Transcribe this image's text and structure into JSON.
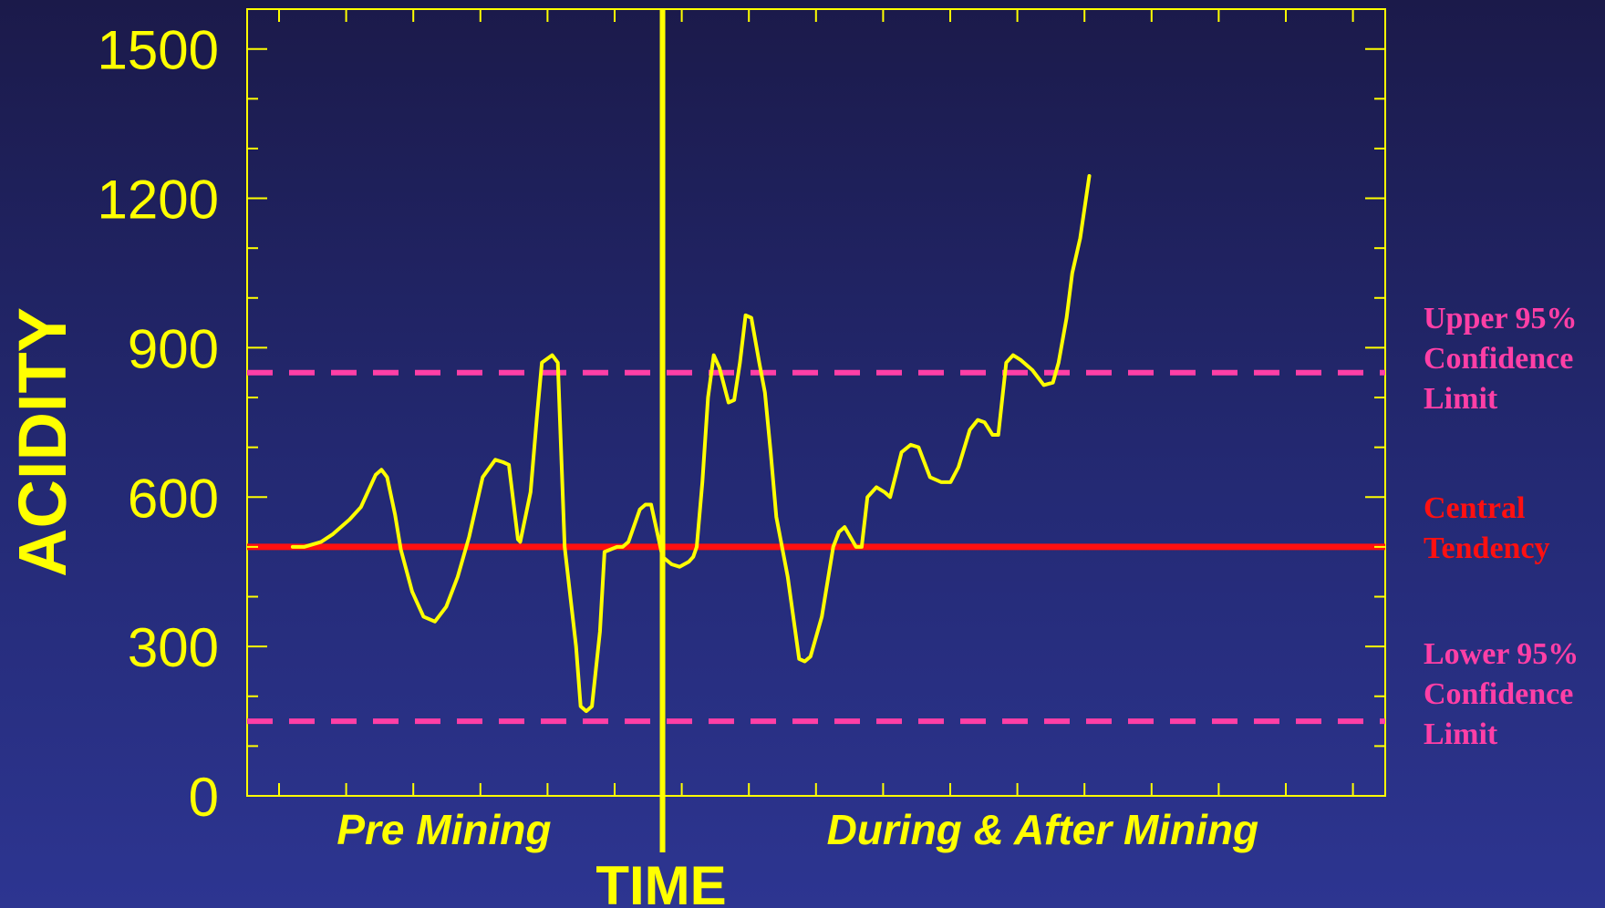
{
  "chart_data": {
    "type": "line",
    "ylabel": "ACIDITY",
    "xlabel": "TIME",
    "ylim": [
      0,
      1580
    ],
    "xlim": [
      0,
      100
    ],
    "yticks": [
      0,
      300,
      600,
      900,
      1200,
      1500
    ],
    "ytick_labels": [
      "0",
      "300",
      "600",
      "900",
      "1200",
      "1500"
    ],
    "grid": false,
    "period_boundary_x": 36.5,
    "periods": [
      {
        "label": "Pre Mining",
        "center_x": 17.3
      },
      {
        "label": "During & After Mining",
        "center_x": 69.9
      }
    ],
    "series": [
      {
        "values": [
          {
            "x": 4.0,
            "y": 500
          },
          {
            "x": 5.0,
            "y": 500
          },
          {
            "x": 6.5,
            "y": 510
          },
          {
            "x": 7.5,
            "y": 525
          },
          {
            "x": 9.0,
            "y": 555
          },
          {
            "x": 10.0,
            "y": 580
          },
          {
            "x": 11.3,
            "y": 645
          },
          {
            "x": 11.8,
            "y": 655
          },
          {
            "x": 12.3,
            "y": 640
          },
          {
            "x": 13.0,
            "y": 565
          },
          {
            "x": 13.5,
            "y": 495
          },
          {
            "x": 14.5,
            "y": 410
          },
          {
            "x": 15.5,
            "y": 360
          },
          {
            "x": 16.5,
            "y": 350
          },
          {
            "x": 17.5,
            "y": 380
          },
          {
            "x": 18.5,
            "y": 440
          },
          {
            "x": 19.5,
            "y": 520
          },
          {
            "x": 20.2,
            "y": 590
          },
          {
            "x": 20.7,
            "y": 640
          },
          {
            "x": 21.8,
            "y": 675
          },
          {
            "x": 22.5,
            "y": 670
          },
          {
            "x": 23.0,
            "y": 665
          },
          {
            "x": 23.8,
            "y": 515
          },
          {
            "x": 24.0,
            "y": 510
          },
          {
            "x": 24.9,
            "y": 610
          },
          {
            "x": 25.5,
            "y": 770
          },
          {
            "x": 25.9,
            "y": 870
          },
          {
            "x": 26.8,
            "y": 885
          },
          {
            "x": 27.3,
            "y": 870
          },
          {
            "x": 27.9,
            "y": 500
          },
          {
            "x": 28.9,
            "y": 300
          },
          {
            "x": 29.3,
            "y": 180
          },
          {
            "x": 29.8,
            "y": 170
          },
          {
            "x": 30.3,
            "y": 180
          },
          {
            "x": 31.0,
            "y": 330
          },
          {
            "x": 31.4,
            "y": 490
          },
          {
            "x": 32.5,
            "y": 500
          },
          {
            "x": 33.0,
            "y": 500
          },
          {
            "x": 33.5,
            "y": 510
          },
          {
            "x": 34.5,
            "y": 575
          },
          {
            "x": 35.0,
            "y": 585
          },
          {
            "x": 35.5,
            "y": 585
          },
          {
            "x": 36.5,
            "y": 480
          },
          {
            "x": 37.3,
            "y": 465
          },
          {
            "x": 38.0,
            "y": 460
          },
          {
            "x": 38.8,
            "y": 470
          },
          {
            "x": 39.2,
            "y": 480
          },
          {
            "x": 39.5,
            "y": 500
          },
          {
            "x": 40.0,
            "y": 630
          },
          {
            "x": 40.5,
            "y": 800
          },
          {
            "x": 41.0,
            "y": 885
          },
          {
            "x": 41.5,
            "y": 860
          },
          {
            "x": 42.3,
            "y": 790
          },
          {
            "x": 42.8,
            "y": 795
          },
          {
            "x": 43.3,
            "y": 870
          },
          {
            "x": 43.8,
            "y": 965
          },
          {
            "x": 44.3,
            "y": 960
          },
          {
            "x": 45.0,
            "y": 870
          },
          {
            "x": 45.5,
            "y": 810
          },
          {
            "x": 46.0,
            "y": 690
          },
          {
            "x": 46.5,
            "y": 560
          },
          {
            "x": 47.5,
            "y": 440
          },
          {
            "x": 48.5,
            "y": 275
          },
          {
            "x": 49.0,
            "y": 270
          },
          {
            "x": 49.5,
            "y": 280
          },
          {
            "x": 50.5,
            "y": 360
          },
          {
            "x": 51.5,
            "y": 500
          },
          {
            "x": 52.0,
            "y": 530
          },
          {
            "x": 52.5,
            "y": 540
          },
          {
            "x": 53.5,
            "y": 500
          },
          {
            "x": 54.0,
            "y": 500
          },
          {
            "x": 54.5,
            "y": 600
          },
          {
            "x": 55.3,
            "y": 620
          },
          {
            "x": 56.0,
            "y": 610
          },
          {
            "x": 56.5,
            "y": 600
          },
          {
            "x": 57.5,
            "y": 690
          },
          {
            "x": 58.3,
            "y": 705
          },
          {
            "x": 59.0,
            "y": 700
          },
          {
            "x": 60.0,
            "y": 640
          },
          {
            "x": 61.0,
            "y": 630
          },
          {
            "x": 61.8,
            "y": 630
          },
          {
            "x": 62.5,
            "y": 660
          },
          {
            "x": 63.5,
            "y": 735
          },
          {
            "x": 64.2,
            "y": 755
          },
          {
            "x": 64.8,
            "y": 750
          },
          {
            "x": 65.5,
            "y": 725
          },
          {
            "x": 66.0,
            "y": 725
          },
          {
            "x": 66.7,
            "y": 870
          },
          {
            "x": 67.3,
            "y": 885
          },
          {
            "x": 68.0,
            "y": 875
          },
          {
            "x": 69.0,
            "y": 855
          },
          {
            "x": 70.0,
            "y": 825
          },
          {
            "x": 70.8,
            "y": 830
          },
          {
            "x": 71.3,
            "y": 870
          },
          {
            "x": 72.0,
            "y": 960
          },
          {
            "x": 72.5,
            "y": 1050
          },
          {
            "x": 73.2,
            "y": 1120
          },
          {
            "x": 74.0,
            "y": 1245
          }
        ]
      }
    ],
    "reference_lines": [
      {
        "name": "upper",
        "y": 850,
        "style": "dashed",
        "color": "#ff3fa6",
        "label": [
          "Upper 95%",
          "Confidence",
          "Limit"
        ]
      },
      {
        "name": "central",
        "y": 500,
        "style": "solid",
        "color": "#ff1010",
        "label": [
          "Central",
          "Tendency"
        ]
      },
      {
        "name": "lower",
        "y": 150,
        "style": "dashed",
        "color": "#ff3fa6",
        "label": [
          "Lower 95%",
          "Confidence",
          "Limit"
        ]
      }
    ]
  },
  "colors": {
    "axis": "#ffff00",
    "series": "#ffff00",
    "upper_limit": "#ff3fa6",
    "lower_limit": "#ff3fa6",
    "central": "#ff1010"
  }
}
